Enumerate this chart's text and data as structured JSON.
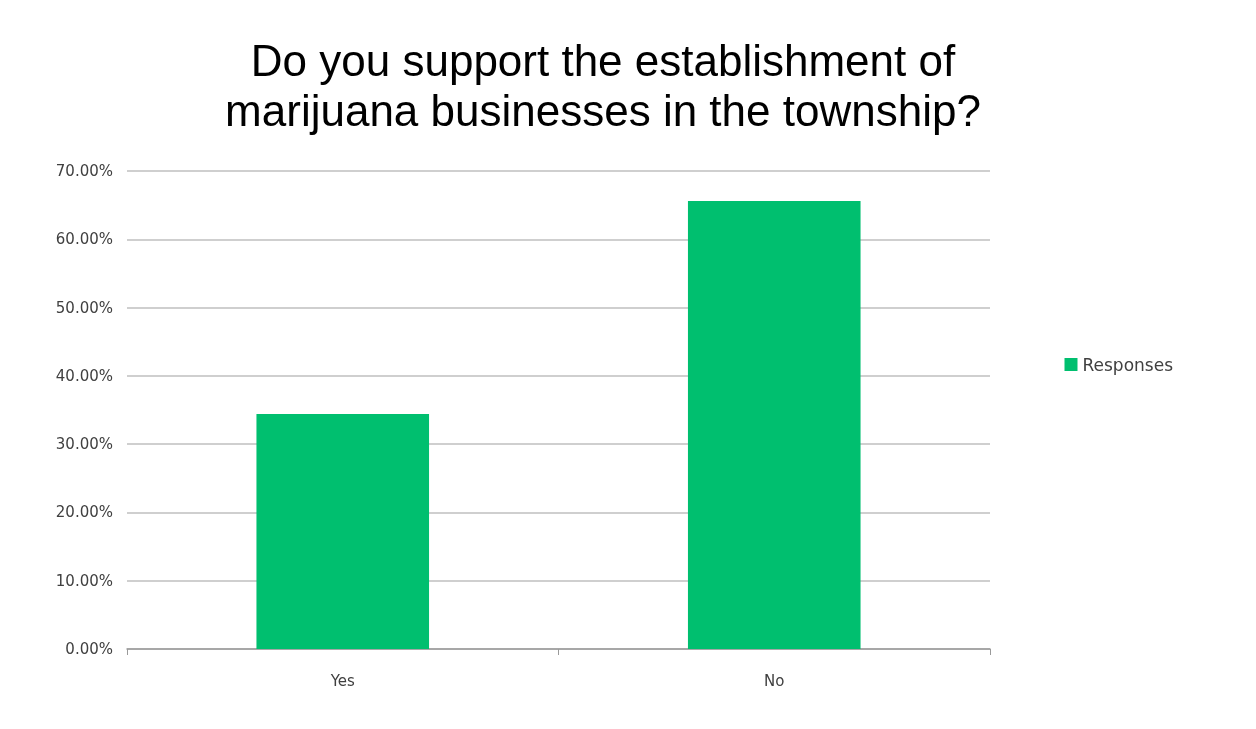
{
  "chart_data": {
    "type": "bar",
    "title": "Do you support the establishment of\nmarijuana businesses in the township?",
    "categories": [
      "Yes",
      "No"
    ],
    "series": [
      {
        "name": "Responses",
        "color": "#00bf6f",
        "values": [
          34.4,
          65.6
        ]
      }
    ],
    "ylim": [
      0,
      70
    ],
    "yticks": [
      {
        "value": 0,
        "label": "0.00%"
      },
      {
        "value": 10,
        "label": "10.00%"
      },
      {
        "value": 20,
        "label": "20.00%"
      },
      {
        "value": 30,
        "label": "30.00%"
      },
      {
        "value": 40,
        "label": "40.00%"
      },
      {
        "value": 50,
        "label": "50.00%"
      },
      {
        "value": 60,
        "label": "60.00%"
      },
      {
        "value": 70,
        "label": "70.00%"
      }
    ],
    "grid": "y",
    "legend": "right"
  }
}
